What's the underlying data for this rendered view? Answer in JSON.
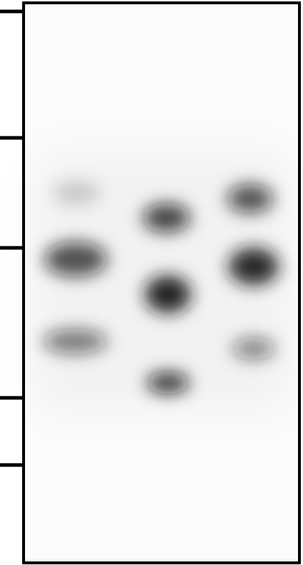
{
  "image": {
    "subject": "western-blot",
    "background_color": "#fbfbfb",
    "frame_color": "#000000",
    "band_color": "#141414",
    "lane_count": 3,
    "marker_tick_count": 5,
    "lanes": [
      {
        "bands": [
          {
            "kind": "faint-band",
            "darkness": 0.18
          },
          {
            "kind": "strong-band",
            "darkness": 0.72
          },
          {
            "kind": "band",
            "darkness": 0.55
          }
        ]
      },
      {
        "bands": [
          {
            "kind": "band",
            "darkness": 0.78
          },
          {
            "kind": "strong-band",
            "darkness": 0.95
          },
          {
            "kind": "band",
            "darkness": 0.82
          }
        ]
      },
      {
        "bands": [
          {
            "kind": "band",
            "darkness": 0.72
          },
          {
            "kind": "strong-band",
            "darkness": 0.92
          },
          {
            "kind": "band",
            "darkness": 0.5
          }
        ]
      }
    ]
  }
}
